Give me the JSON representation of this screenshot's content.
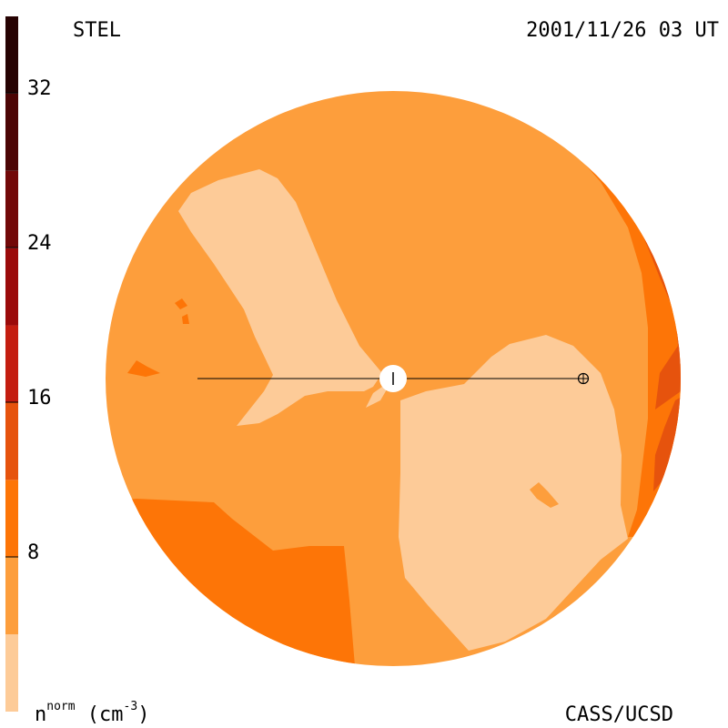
{
  "header": {
    "left_label": "STEL",
    "timestamp": "2001/11/26 03 UT"
  },
  "footer": {
    "units_label_main": "n",
    "units_label_sup": "norm",
    "units_label_tail": " (cm",
    "units_label_exp": "-3",
    "units_label_close": ")",
    "credit": "CASS/UCSD"
  },
  "colorbar": {
    "bands": [
      {
        "from": 0,
        "to": 4,
        "color": "#fdcb98"
      },
      {
        "from": 4,
        "to": 8,
        "color": "#fd9e3c"
      },
      {
        "from": 8,
        "to": 12,
        "color": "#fd7507"
      },
      {
        "from": 12,
        "to": 16,
        "color": "#e6530d"
      },
      {
        "from": 16,
        "to": 20,
        "color": "#c41d10"
      },
      {
        "from": 20,
        "to": 24,
        "color": "#9b0a0a"
      },
      {
        "from": 24,
        "to": 28,
        "color": "#720808"
      },
      {
        "from": 28,
        "to": 32,
        "color": "#4c0505"
      },
      {
        "from": 32,
        "to": 36,
        "color": "#260202"
      }
    ],
    "ticks": [
      "8",
      "16",
      "24",
      "32"
    ],
    "range": [
      0,
      36
    ]
  },
  "colors": {
    "lightest": "#fdcb98",
    "light": "#fd9e3c",
    "medium": "#fd7507",
    "dark": "#e6530d",
    "red": "#c41d10",
    "darkred": "#9b0a0a"
  }
}
